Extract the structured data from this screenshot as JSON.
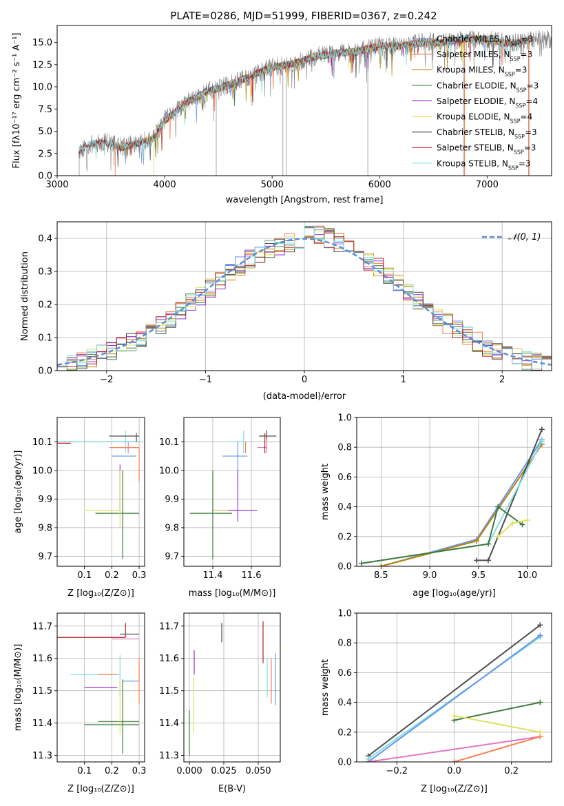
{
  "colors": {
    "Chabrier MILES": "#6495ed",
    "Salpeter MILES": "#ff7f50",
    "Kroupa MILES": "#b8860b",
    "Chabrier ELODIE": "#3d7a3d",
    "Salpeter ELODIE": "#9932cc",
    "Kroupa ELODIE": "#e0e060",
    "Chabrier STELIB": "#4d4d4d",
    "Salpeter STELIB": "#b22222",
    "Kroupa STELIB": "#80dfdf",
    "pink": "#e377c2",
    "data": "#808080"
  },
  "chart_data": [
    {
      "id": "spectrum",
      "type": "line",
      "title": "PLATE=0286, MJD=51999, FIBERID=0367, z=0.242",
      "xlabel": "wavelength [Angstrom, rest frame]",
      "ylabel": "Flux [fλ10⁻¹⁷ erg cm⁻² s⁻¹ A⁻¹]",
      "xlim": [
        3000,
        7600
      ],
      "ylim": [
        0,
        16.9
      ],
      "xticks": [
        "3000",
        "4000",
        "5000",
        "6000",
        "7000"
      ],
      "yticks": [
        "0.0",
        "2.5",
        "5.0",
        "7.5",
        "10.0",
        "12.5",
        "15.0"
      ],
      "legend_position": "upper-right",
      "legend": [
        {
          "name": "Chabrier MILES",
          "suffix": "=3"
        },
        {
          "name": "Salpeter MILES",
          "suffix": "=3"
        },
        {
          "name": "Kroupa MILES",
          "suffix": "=3"
        },
        {
          "name": "Chabrier ELODIE",
          "suffix": "=3"
        },
        {
          "name": "Salpeter ELODIE",
          "suffix": "=4"
        },
        {
          "name": "Kroupa ELODIE",
          "suffix": "=4"
        },
        {
          "name": "Chabrier STELIB",
          "suffix": "=3"
        },
        {
          "name": "Salpeter STELIB",
          "suffix": "=3"
        },
        {
          "name": "Kroupa STELIB",
          "suffix": "=3"
        }
      ],
      "data_x": [
        3200,
        3300,
        3400,
        3500,
        3600,
        3700,
        3800,
        3900,
        4000,
        4200,
        4400,
        4600,
        4800,
        5000,
        5200,
        5400,
        5600,
        5800,
        6000,
        6200,
        6400,
        6600,
        6800,
        7000,
        7200,
        7400
      ],
      "data_y": [
        2.8,
        3.5,
        3.8,
        3.6,
        3.2,
        3.5,
        3.8,
        4.2,
        6.2,
        8.2,
        9.5,
        10.2,
        11.2,
        12.2,
        12.6,
        13.4,
        13.8,
        14.0,
        14.6,
        14.6,
        15.0,
        15.0,
        15.4,
        15.3,
        14.8,
        15.3
      ],
      "model_ranges": {
        "MILES": [
          3540,
          7400
        ],
        "ELODIE": [
          3900,
          6800
        ],
        "STELIB": [
          3200,
          7400
        ]
      }
    },
    {
      "id": "residuals",
      "type": "histogram",
      "xlabel": "(data-model)/error",
      "ylabel": "Normed distribution",
      "xlim": [
        -2.5,
        2.5
      ],
      "ylim": [
        0,
        0.45
      ],
      "xticks": [
        -2,
        -1,
        0,
        1,
        2
      ],
      "xtick_labels": [
        "−2",
        "−1",
        "0",
        "1",
        "2"
      ],
      "yticks": [
        "0.0",
        "0.1",
        "0.2",
        "0.3",
        "0.4"
      ],
      "grid": true,
      "legend": [
        "𝒩(0, 1)"
      ],
      "legend_position": "upper-right",
      "normal_curve": {
        "mean": 0,
        "std": 1
      }
    },
    {
      "id": "age-vs-Z",
      "type": "errorbar",
      "xlabel": "Z [log₁₀(Z/Z⊙)]",
      "ylabel": "age  [log₁₀(age/yr)]",
      "xlim": [
        0.0,
        0.32
      ],
      "ylim": [
        9.665,
        10.185
      ],
      "xticks": [
        "0.1",
        "0.2",
        "0.3"
      ],
      "yticks": [
        "9.7",
        "9.8",
        "9.9",
        "10.0",
        "10.1"
      ]
    },
    {
      "id": "age-vs-mass",
      "type": "errorbar",
      "xlabel": "mass [log₁₀(M/M⊙)]",
      "xlim": [
        11.25,
        11.75
      ],
      "ylim": [
        9.665,
        10.185
      ],
      "xticks": [
        "11.4",
        "11.6"
      ],
      "yticks": [
        "9.7",
        "9.8",
        "9.9",
        "10.0",
        "10.1"
      ]
    },
    {
      "id": "massweight-vs-age",
      "type": "line",
      "xlabel": "age  [log₁₀(age/yr)]",
      "ylabel": "mass weight",
      "xlim": [
        8.25,
        10.25
      ],
      "ylim": [
        0,
        1
      ],
      "xticks": [
        "8.5",
        "9.0",
        "9.5",
        "10.0"
      ],
      "yticks": [
        "0.0",
        "0.2",
        "0.4",
        "0.6",
        "0.8",
        "1.0"
      ],
      "grid": true,
      "series": [
        {
          "color": "Chabrier MILES",
          "x": [
            8.5,
            9.48,
            10.15
          ],
          "y": [
            0.0,
            0.18,
            0.85
          ]
        },
        {
          "color": "Salpeter MILES",
          "x": [
            8.5,
            9.48,
            10.15
          ],
          "y": [
            0.0,
            0.17,
            0.82
          ]
        },
        {
          "color": "Kroupa MILES",
          "x": [
            8.5,
            9.48,
            10.15
          ],
          "y": [
            0.0,
            0.17,
            0.82
          ]
        },
        {
          "color": "Chabrier STELIB",
          "x": [
            9.48,
            9.6,
            10.15
          ],
          "y": [
            0.04,
            0.04,
            0.92
          ]
        },
        {
          "color": "Kroupa STELIB",
          "x": [
            8.3,
            9.6,
            10.15
          ],
          "y": [
            0.02,
            0.15,
            0.84
          ]
        },
        {
          "color": "Chabrier ELODIE",
          "x": [
            8.3,
            9.6,
            9.7,
            9.95
          ],
          "y": [
            0.02,
            0.15,
            0.4,
            0.28
          ]
        },
        {
          "color": "Kroupa ELODIE",
          "x": [
            9.7,
            9.85,
            10.0
          ],
          "y": [
            0.2,
            0.29,
            0.31
          ]
        }
      ]
    },
    {
      "id": "mass-vs-Z",
      "type": "errorbar",
      "xlabel": "Z [log₁₀(Z/Z⊙)]",
      "ylabel": "mass [log₁₀(M/M⊙)]",
      "xlim": [
        0.0,
        0.32
      ],
      "ylim": [
        11.28,
        11.74
      ],
      "xticks": [
        "0.1",
        "0.2",
        "0.3"
      ],
      "yticks": [
        "11.3",
        "11.4",
        "11.5",
        "11.6",
        "11.7"
      ]
    },
    {
      "id": "mass-vs-ebv",
      "type": "errorbar",
      "xlabel": "E(B-V)",
      "xlim": [
        -0.004,
        0.066
      ],
      "ylim": [
        11.28,
        11.74
      ],
      "xticks": [
        "0.000",
        "0.025",
        "0.050"
      ],
      "yticks": [
        "11.3",
        "11.4",
        "11.5",
        "11.6",
        "11.7"
      ]
    },
    {
      "id": "massweight-vs-Z",
      "type": "line",
      "xlabel": "Z [log₁₀(Z/Z⊙)]",
      "ylabel": "mass weight",
      "xlim": [
        -0.34,
        0.34
      ],
      "ylim": [
        0,
        1
      ],
      "xticks": [
        "−0.2",
        "0.0",
        "0.2"
      ],
      "yticks": [
        "0.0",
        "0.2",
        "0.4",
        "0.6",
        "0.8",
        "1.0"
      ],
      "grid": true,
      "series": [
        {
          "color": "Chabrier STELIB",
          "x": [
            -0.3,
            0.3
          ],
          "y": [
            0.04,
            0.92
          ]
        },
        {
          "color": "Kroupa STELIB",
          "x": [
            -0.3,
            0.3
          ],
          "y": [
            0.02,
            0.84
          ]
        },
        {
          "color": "Chabrier MILES",
          "x": [
            -0.3,
            0.3
          ],
          "y": [
            0.0,
            0.85
          ]
        },
        {
          "color": "pink",
          "x": [
            -0.3,
            0.3
          ],
          "y": [
            0.0,
            0.17
          ]
        },
        {
          "color": "Salpeter MILES",
          "x": [
            0.0,
            0.3
          ],
          "y": [
            0.0,
            0.17
          ]
        },
        {
          "color": "Chabrier ELODIE",
          "x": [
            0.0,
            0.3
          ],
          "y": [
            0.28,
            0.4
          ]
        },
        {
          "color": "Kroupa ELODIE",
          "x": [
            0.0,
            0.3
          ],
          "y": [
            0.31,
            0.2
          ]
        }
      ]
    }
  ]
}
